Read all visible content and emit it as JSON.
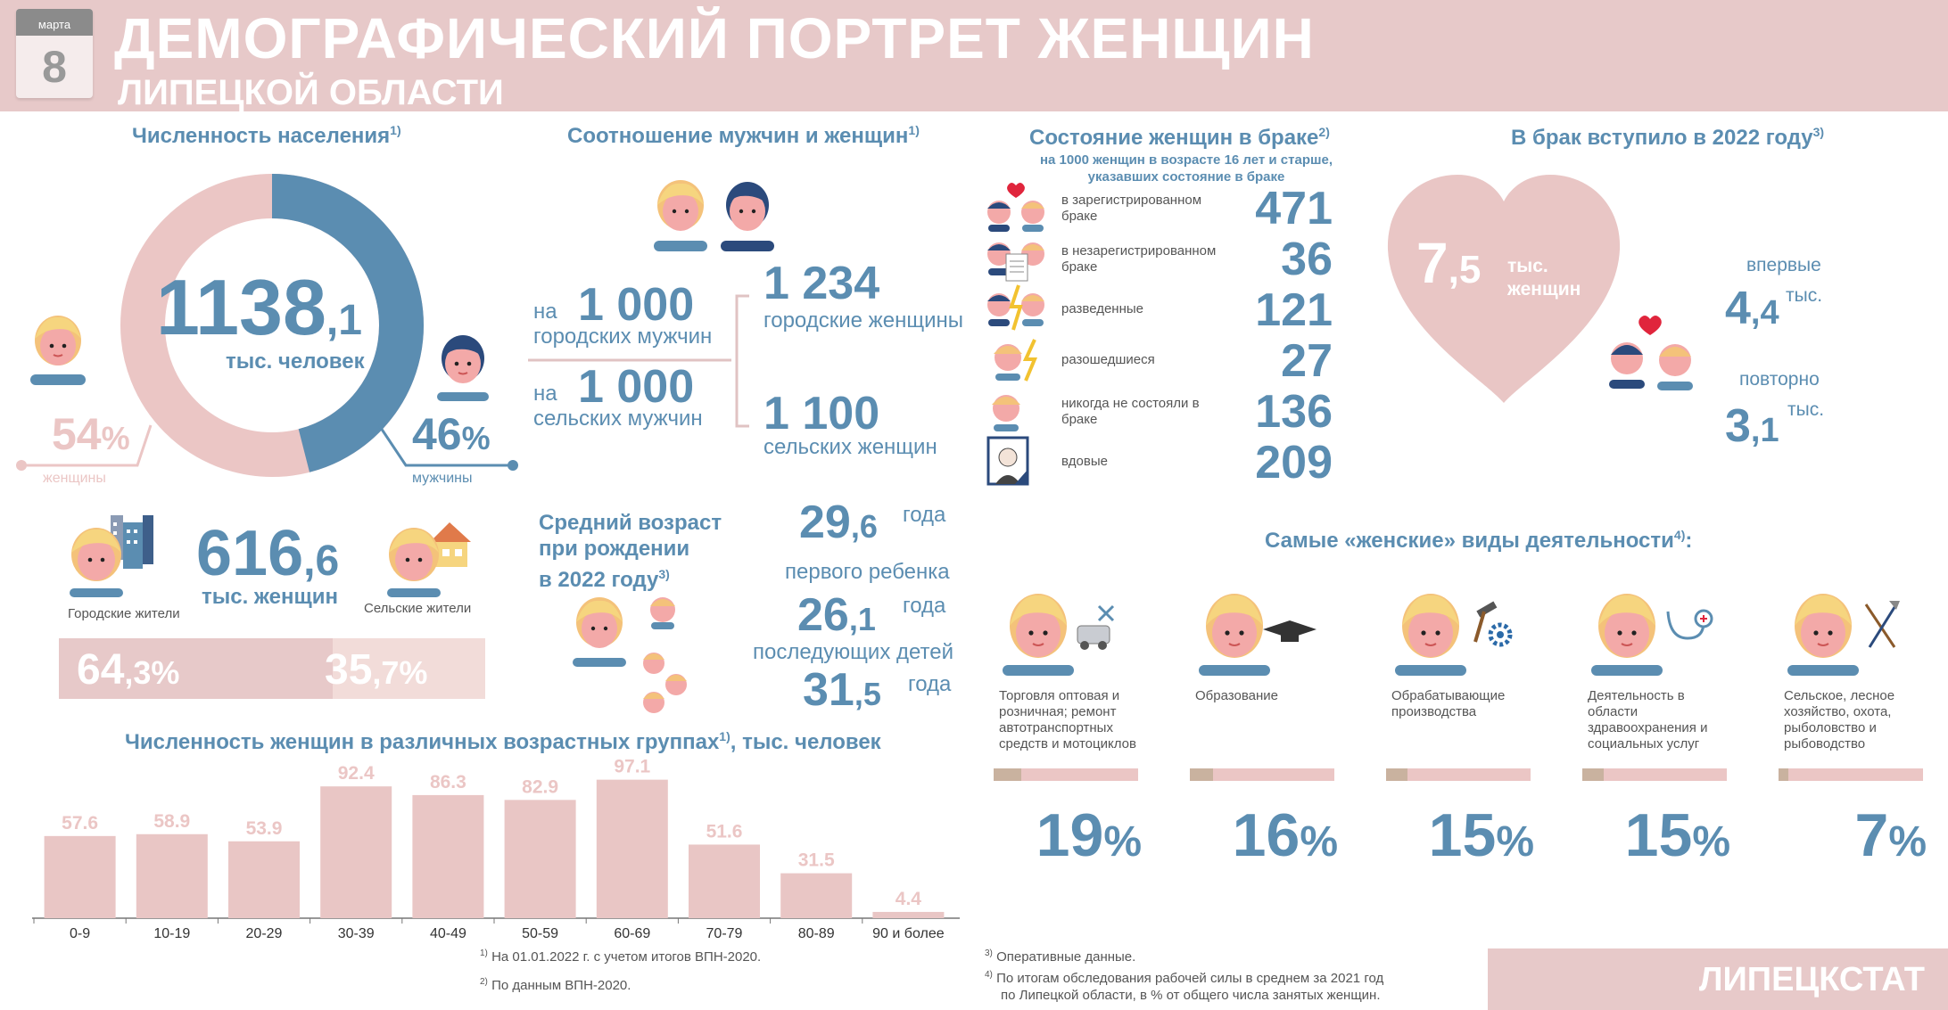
{
  "header": {
    "calendar_month": "марта",
    "calendar_day": "8",
    "title_line1": "ДЕМОГРАФИЧЕСКИЙ ПОРТРЕТ ЖЕНЩИН",
    "title_line2": "ЛИПЕЦКОЙ ОБЛАСТИ"
  },
  "population": {
    "title": "Численность населения",
    "sup": "1)",
    "total_int": "1138",
    "total_dec": ",1",
    "unit": "тыс. человек",
    "women_pct": "54",
    "men_pct": "46",
    "pct_sign": "%",
    "women_label": "женщины",
    "men_label": "мужчины",
    "women_share": 54,
    "men_share": 46,
    "colors": {
      "women": "#ebc6c5",
      "men": "#5b8db1"
    }
  },
  "residence": {
    "urban_label": "Городские жители",
    "rural_label": "Сельские жители",
    "value_int": "616",
    "value_dec": ",6",
    "unit": "тыс. женщин",
    "urban_pct_int": "64",
    "urban_pct_dec": ",3%",
    "rural_pct_int": "35",
    "rural_pct_dec": ",7%",
    "urban_share": 64.3,
    "rural_share": 35.7
  },
  "ratio": {
    "title": "Соотношение мужчин и женщин",
    "sup": "1)",
    "na": "на",
    "men1_num": "1 000",
    "men1_label": "городских мужчин",
    "men2_num": "1 000",
    "men2_label": "сельских мужчин",
    "women1_num": "1 234",
    "women1_label": "городские женщины",
    "women2_num": "1 100",
    "women2_label": "сельских женщин"
  },
  "birth_age": {
    "title_l1": "Средний возраст",
    "title_l2": "при рождении",
    "title_l3": "в 2022 году",
    "sup": "3)",
    "a1_int": "29",
    "a1_dec": ",6",
    "a1_unit": "года",
    "a1_label": "первого ребенка",
    "a2_int": "26",
    "a2_dec": ",1",
    "a2_unit": "года",
    "a2_label": "последующих детей",
    "a3_int": "31",
    "a3_dec": ",5",
    "a3_unit": "года"
  },
  "marital": {
    "title": "Состояние женщин в браке",
    "sup": "2)",
    "subtitle_l1": "на 1000 женщин в возрасте 16 лет и старше,",
    "subtitle_l2": "указавших состояние в браке",
    "items": [
      {
        "label": "в зарегистрированном браке",
        "value": "471",
        "icon": "couple-heart-icon"
      },
      {
        "label": "в незарегистрированном браке",
        "value": "36",
        "icon": "couple-document-icon"
      },
      {
        "label": "разведенные",
        "value": "121",
        "icon": "couple-split-icon"
      },
      {
        "label": "разошедшиеся",
        "value": "27",
        "icon": "woman-lightning-icon"
      },
      {
        "label": "никогда не состояли в браке",
        "value": "136",
        "icon": "woman-icon"
      },
      {
        "label": "вдовые",
        "value": "209",
        "icon": "portrait-frame-icon"
      }
    ]
  },
  "marriages": {
    "title": "В брак вступило в 2022 году",
    "sup": "3)",
    "total_int": "7",
    "total_dec": ",5",
    "total_unit_l1": "тыс.",
    "total_unit_l2": "женщин",
    "first_label": "впервые",
    "first_int": "4",
    "first_dec": ",4",
    "first_unit": "тыс.",
    "repeat_label": "повторно",
    "repeat_int": "3",
    "repeat_dec": ",1",
    "repeat_unit": "тыс."
  },
  "activities": {
    "title": "Самые «женские» виды деятельности",
    "sup": "4)",
    "title_end": ":",
    "items": [
      {
        "label": "Торговля оптовая и розничная; ремонт автотранспортных средств и мотоциклов",
        "value": 19,
        "value_text": "19",
        "icon": "car-repair-icon"
      },
      {
        "label": "Образование",
        "value": 16,
        "value_text": "16",
        "icon": "graduation-cap-icon"
      },
      {
        "label": "Обрабатывающие производства",
        "value": 15,
        "value_text": "15",
        "icon": "hammer-gear-icon"
      },
      {
        "label": "Деятельность в области здравоохранения и социальных услуг",
        "value": 15,
        "value_text": "15",
        "icon": "stethoscope-icon"
      },
      {
        "label": "Сельское, лесное хозяйство, охота, рыболовство и рыбоводство",
        "value": 7,
        "value_text": "7",
        "icon": "farm-tools-icon"
      }
    ],
    "pct_sign": "%"
  },
  "chart_title": "Численность женщин в различных возрастных группах",
  "chart_sup": "1)",
  "chart_title_end": ", тыс. человек",
  "chart_data": {
    "type": "bar",
    "categories": [
      "0-9",
      "10-19",
      "20-29",
      "30-39",
      "40-49",
      "50-59",
      "60-69",
      "70-79",
      "80-89",
      "90 и более"
    ],
    "values": [
      57.6,
      58.9,
      53.9,
      92.4,
      86.3,
      82.9,
      97.1,
      51.6,
      31.5,
      4.4
    ],
    "value_labels": [
      "57.6",
      "58.9",
      "53.9",
      "92.4",
      "86.3",
      "82.9",
      "97.1",
      "51.6",
      "31.5",
      "4.4"
    ],
    "title": "Численность женщин в различных возрастных группах, тыс. человек",
    "xlabel": "",
    "ylabel": "",
    "ylim": [
      0,
      100
    ],
    "grid": false,
    "bar_color": "#e9c6c5",
    "label_color": "#ebc6c5"
  },
  "footnotes": {
    "n1_sup": "1)",
    "n1": "На 01.01.2022 г.  с  учетом итогов ВПН-2020.",
    "n2_sup": "2)",
    "n2": "По данным ВПН-2020.",
    "n3_sup": "3)",
    "n3": "Оперативные данные.",
    "n4_sup": "4)",
    "n4_l1": "По  итогам  обследования  рабочей силы  в  среднем  за  2021  год",
    "n4_l2": "по Липецкой области, в % от общего числа занятых женщин."
  },
  "brand": "ЛИПЕЦКСТАТ"
}
